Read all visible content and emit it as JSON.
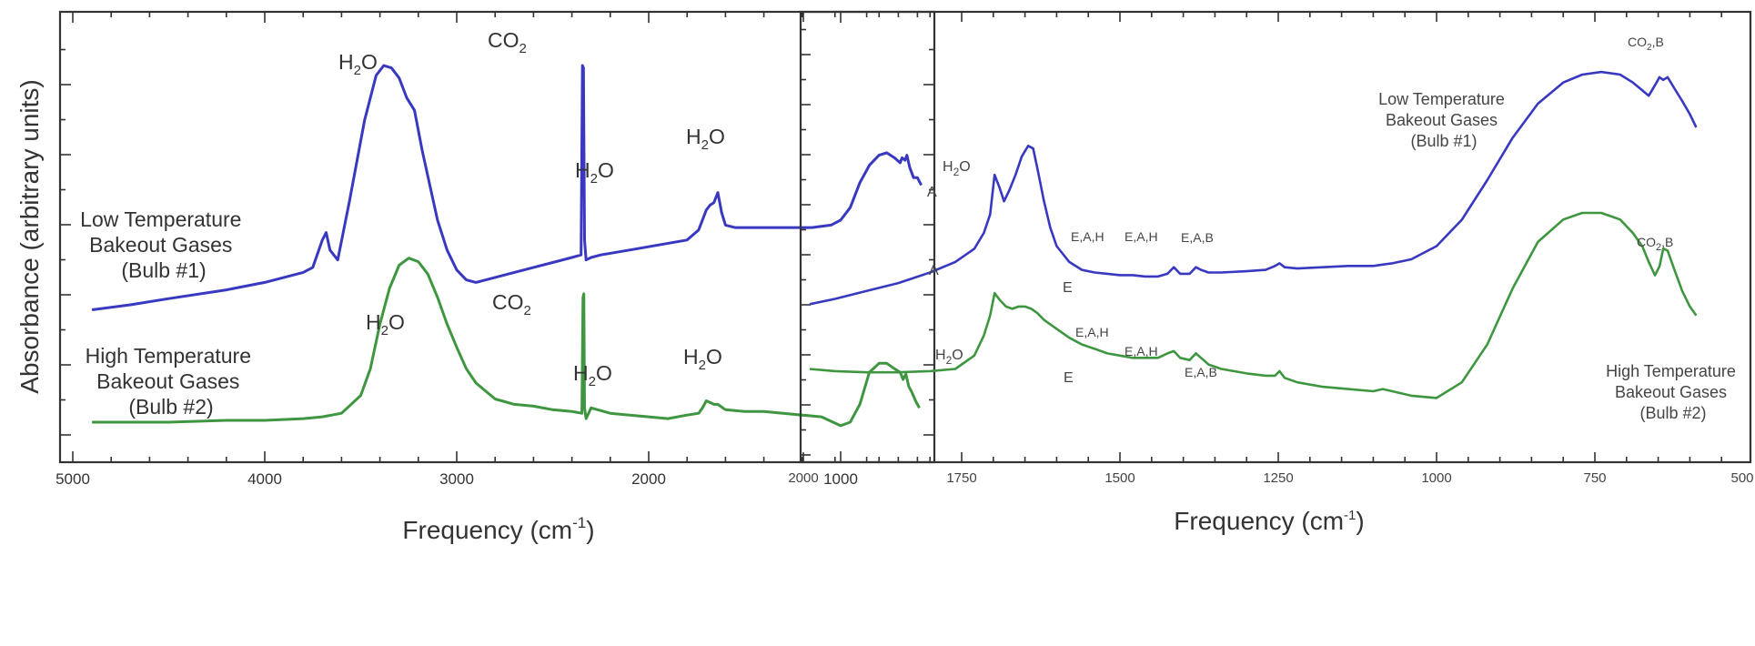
{
  "colors": {
    "low_temperature": "#3838c0",
    "high_temperature": "#3f9640",
    "axes": "#333333"
  },
  "chart_data": [
    {
      "type": "line",
      "xlabel": "Frequency (cm",
      "xlabel_superscript": "-1",
      "xlabel_close": ")",
      "ylabel": "Absorbance (arbitrary units)",
      "xlim": [
        5000,
        500
      ],
      "xticks": [
        "5000",
        "4000",
        "3000",
        "2000",
        "1000"
      ],
      "ytick_labels": "none",
      "series": [
        {
          "name": "Low Temperature Bakeout Gases (Bulb #1)",
          "x": [
            4900,
            4700,
            4500,
            4200,
            4000,
            3800,
            3750,
            3700,
            3680,
            3660,
            3620,
            3560,
            3480,
            3420,
            3380,
            3340,
            3300,
            3260,
            3220,
            3180,
            3100,
            3050,
            3000,
            2950,
            2900,
            2800,
            2700,
            2600,
            2500,
            2400,
            2352,
            2345,
            2340,
            2334,
            2326,
            2300,
            2250,
            2100,
            1950,
            1800,
            1740,
            1700,
            1680,
            1660,
            1640,
            1620,
            1600,
            1550,
            1450,
            1300,
            1150,
            1050,
            1000,
            950,
            900,
            850,
            800,
            760,
            720,
            690,
            680,
            665,
            655,
            640,
            620,
            600,
            580
          ],
          "y": [
            0.02,
            0.04,
            0.065,
            0.1,
            0.13,
            0.17,
            0.19,
            0.3,
            0.33,
            0.26,
            0.22,
            0.45,
            0.78,
            0.96,
            1.0,
            0.99,
            0.95,
            0.87,
            0.82,
            0.66,
            0.38,
            0.26,
            0.18,
            0.14,
            0.13,
            0.15,
            0.17,
            0.19,
            0.21,
            0.23,
            0.24,
            1.0,
            0.99,
            0.3,
            0.22,
            0.23,
            0.24,
            0.26,
            0.28,
            0.3,
            0.34,
            0.42,
            0.44,
            0.45,
            0.49,
            0.41,
            0.36,
            0.35,
            0.35,
            0.35,
            0.35,
            0.36,
            0.38,
            0.43,
            0.53,
            0.6,
            0.64,
            0.65,
            0.63,
            0.61,
            0.63,
            0.62,
            0.64,
            0.59,
            0.55,
            0.55,
            0.52
          ]
        },
        {
          "name": "High Temperature Bakeout Gases (Bulb #2)",
          "x": [
            4900,
            4700,
            4500,
            4200,
            4000,
            3800,
            3700,
            3600,
            3500,
            3450,
            3400,
            3350,
            3300,
            3250,
            3200,
            3150,
            3100,
            3050,
            3000,
            2950,
            2900,
            2800,
            2700,
            2600,
            2500,
            2400,
            2348,
            2342,
            2338,
            2334,
            2326,
            2300,
            2200,
            2100,
            2000,
            1900,
            1800,
            1740,
            1720,
            1700,
            1680,
            1660,
            1640,
            1600,
            1500,
            1400,
            1300,
            1200,
            1100,
            1000,
            950,
            900,
            850,
            800,
            760,
            720,
            690,
            675,
            660,
            645,
            630,
            610,
            590
          ],
          "y": [
            0.0,
            0.0,
            0.0,
            0.01,
            0.01,
            0.02,
            0.03,
            0.05,
            0.15,
            0.3,
            0.55,
            0.75,
            0.88,
            0.92,
            0.9,
            0.83,
            0.7,
            0.55,
            0.42,
            0.3,
            0.22,
            0.13,
            0.1,
            0.09,
            0.07,
            0.06,
            0.05,
            0.7,
            0.72,
            0.08,
            0.02,
            0.08,
            0.05,
            0.04,
            0.03,
            0.02,
            0.04,
            0.05,
            0.08,
            0.12,
            0.11,
            0.1,
            0.1,
            0.07,
            0.06,
            0.06,
            0.05,
            0.04,
            0.03,
            -0.02,
            0.0,
            0.1,
            0.28,
            0.33,
            0.33,
            0.3,
            0.28,
            0.24,
            0.27,
            0.2,
            0.17,
            0.12,
            0.08
          ]
        }
      ],
      "annotations": {
        "low_label": [
          "Low Temperature",
          "Bakeout Gases",
          "(Bulb #1)"
        ],
        "high_label": [
          "High Temperature",
          "Bakeout Gases",
          "(Bulb #2)"
        ],
        "h2o": {
          "main": "H",
          "sub": "2",
          "tail": "O"
        },
        "co2": {
          "main": "CO",
          "sub": "2"
        }
      }
    },
    {
      "type": "line",
      "xlabel": "Frequency (cm",
      "xlabel_superscript": "-1",
      "xlabel_close": ")",
      "xlim": [
        2000,
        500
      ],
      "xticks": [
        "2000",
        "1750",
        "1500",
        "1250",
        "1000",
        "750",
        "500"
      ],
      "ytick_labels": "none",
      "series": [
        {
          "name": "Low Temperature Bakeout Gases (Bulb #1)",
          "x": [
            1990,
            1950,
            1900,
            1850,
            1800,
            1760,
            1730,
            1715,
            1705,
            1698,
            1690,
            1683,
            1675,
            1665,
            1655,
            1645,
            1637,
            1630,
            1620,
            1610,
            1600,
            1580,
            1560,
            1540,
            1520,
            1500,
            1480,
            1460,
            1440,
            1425,
            1415,
            1405,
            1390,
            1380,
            1372,
            1360,
            1340,
            1300,
            1270,
            1255,
            1248,
            1240,
            1220,
            1180,
            1140,
            1100,
            1085,
            1070,
            1040,
            1000,
            960,
            920,
            880,
            840,
            800,
            770,
            740,
            710,
            690,
            675,
            665,
            655,
            648,
            642,
            635,
            625,
            612,
            600,
            590
          ],
          "y": [
            0.13,
            0.15,
            0.18,
            0.21,
            0.25,
            0.29,
            0.34,
            0.4,
            0.47,
            0.62,
            0.57,
            0.52,
            0.56,
            0.62,
            0.69,
            0.73,
            0.72,
            0.64,
            0.52,
            0.42,
            0.35,
            0.29,
            0.26,
            0.25,
            0.245,
            0.24,
            0.24,
            0.235,
            0.235,
            0.245,
            0.27,
            0.245,
            0.245,
            0.27,
            0.26,
            0.25,
            0.25,
            0.255,
            0.26,
            0.275,
            0.285,
            0.27,
            0.265,
            0.27,
            0.275,
            0.275,
            0.28,
            0.285,
            0.3,
            0.35,
            0.45,
            0.6,
            0.76,
            0.89,
            0.97,
            1.0,
            1.01,
            1.0,
            0.97,
            0.94,
            0.92,
            0.96,
            0.99,
            0.98,
            0.99,
            0.95,
            0.9,
            0.85,
            0.8
          ]
        },
        {
          "name": "High Temperature Bakeout Gases (Bulb #2)",
          "x": [
            1990,
            1950,
            1900,
            1850,
            1800,
            1760,
            1730,
            1715,
            1705,
            1698,
            1690,
            1680,
            1670,
            1660,
            1650,
            1640,
            1630,
            1620,
            1600,
            1580,
            1560,
            1540,
            1520,
            1500,
            1480,
            1460,
            1440,
            1425,
            1415,
            1405,
            1390,
            1380,
            1372,
            1360,
            1340,
            1300,
            1270,
            1255,
            1248,
            1240,
            1220,
            1180,
            1140,
            1100,
            1085,
            1070,
            1040,
            1000,
            960,
            920,
            880,
            840,
            800,
            770,
            740,
            710,
            690,
            675,
            665,
            655,
            648,
            642,
            635,
            625,
            612,
            600,
            590
          ],
          "y": [
            0.1,
            0.09,
            0.085,
            0.085,
            0.09,
            0.1,
            0.16,
            0.25,
            0.34,
            0.44,
            0.41,
            0.38,
            0.37,
            0.38,
            0.38,
            0.37,
            0.35,
            0.32,
            0.28,
            0.24,
            0.21,
            0.19,
            0.17,
            0.16,
            0.15,
            0.15,
            0.15,
            0.17,
            0.18,
            0.15,
            0.14,
            0.17,
            0.15,
            0.12,
            0.1,
            0.08,
            0.07,
            0.07,
            0.09,
            0.06,
            0.04,
            0.02,
            0.01,
            0.0,
            0.01,
            0.0,
            -0.02,
            -0.03,
            0.04,
            0.21,
            0.46,
            0.67,
            0.77,
            0.8,
            0.8,
            0.77,
            0.71,
            0.65,
            0.58,
            0.52,
            0.56,
            0.64,
            0.63,
            0.55,
            0.45,
            0.38,
            0.34
          ]
        }
      ],
      "annotations": {
        "low_label": [
          "Low Temperature",
          "Bakeout Gases",
          "(Bulb #1)"
        ],
        "high_label": [
          "High Temperature",
          "Bakeout Gases",
          "(Bulb #2)"
        ],
        "h2o": {
          "main": "H",
          "sub": "2",
          "tail": "O"
        },
        "co2b": {
          "main": "CO",
          "sub": "2",
          "tail": ",B"
        },
        "peaks": {
          "a": "A",
          "e": "E",
          "eah": "E,A,H",
          "eab": "E,A,B"
        }
      }
    }
  ]
}
